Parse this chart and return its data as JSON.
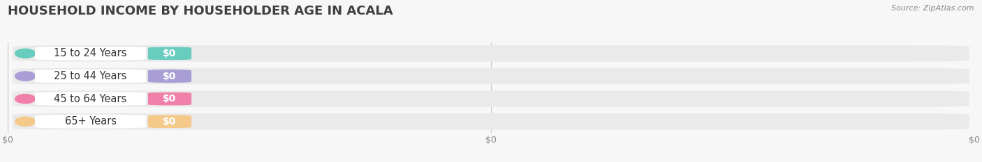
{
  "title": "HOUSEHOLD INCOME BY HOUSEHOLDER AGE IN ACALA",
  "source": "Source: ZipAtlas.com",
  "categories": [
    "15 to 24 Years",
    "25 to 44 Years",
    "45 to 64 Years",
    "65+ Years"
  ],
  "values": [
    0,
    0,
    0,
    0
  ],
  "bar_colors": [
    "#68CCBF",
    "#A99DD6",
    "#F07FAA",
    "#F5C98A"
  ],
  "bar_bg_color": "#EAEAEA",
  "background_color": "#F7F7F7",
  "title_fontsize": 13,
  "label_fontsize": 10.5,
  "value_fontsize": 10,
  "source_fontsize": 8
}
